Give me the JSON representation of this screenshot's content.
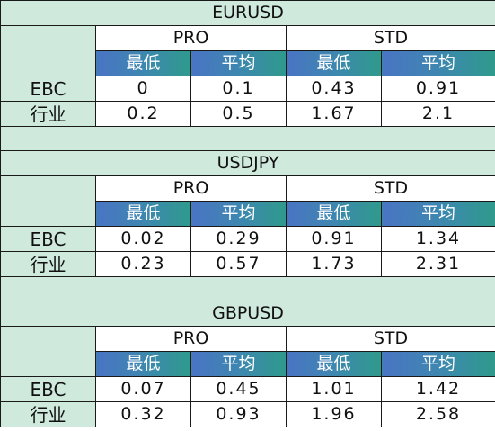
{
  "tables": [
    {
      "pair": "EURUSD",
      "groups": [
        "PRO",
        "STD"
      ],
      "headers": [
        "最低",
        "平均",
        "最低",
        "平均"
      ],
      "rows": [
        {
          "label": "EBC",
          "values": [
            "0",
            "0.1",
            "0.43",
            "0.91"
          ]
        },
        {
          "label": "行业",
          "values": [
            "0.2",
            "0.5",
            "1.67",
            "2.1"
          ]
        }
      ]
    },
    {
      "pair": "USDJPY",
      "groups": [
        "PRO",
        "STD"
      ],
      "headers": [
        "最低",
        "平均",
        "最低",
        "平均"
      ],
      "rows": [
        {
          "label": "EBC",
          "values": [
            "0.02",
            "0.29",
            "0.91",
            "1.34"
          ]
        },
        {
          "label": "行业",
          "values": [
            "0.23",
            "0.57",
            "1.73",
            "2.31"
          ]
        }
      ]
    },
    {
      "pair": "GBPUSD",
      "groups": [
        "PRO",
        "STD"
      ],
      "headers": [
        "最低",
        "平均",
        "最低",
        "平均"
      ],
      "rows": [
        {
          "label": "EBC",
          "values": [
            "0.07",
            "0.45",
            "1.01",
            "1.42"
          ]
        },
        {
          "label": "行业",
          "values": [
            "0.32",
            "0.93",
            "1.96",
            "2.58"
          ]
        }
      ]
    }
  ]
}
